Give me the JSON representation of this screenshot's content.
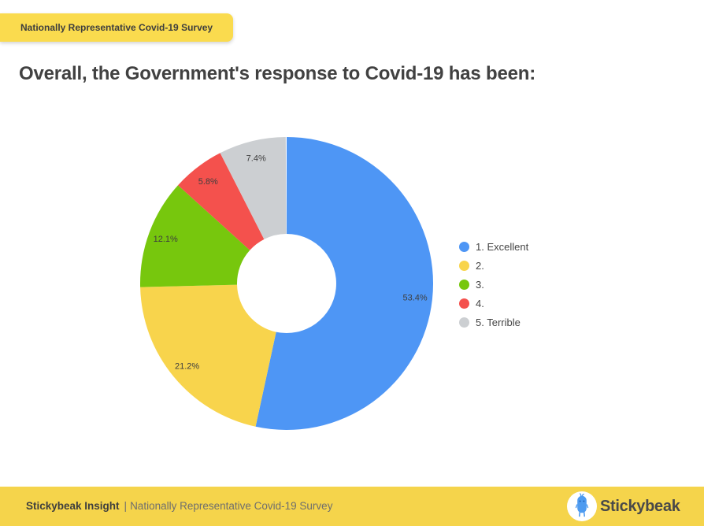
{
  "header": {
    "badge": "Nationally Representative Covid-19 Survey",
    "title": "Overall, the Government's response to Covid-19 has been:"
  },
  "chart_data": {
    "type": "pie",
    "donut": true,
    "start_angle_deg": 0,
    "clockwise": true,
    "title": "Overall, the Government's response to Covid-19 has been:",
    "categories": [
      "1. Excellent",
      "2.",
      "3.",
      "4.",
      "5. Terrible"
    ],
    "values": [
      53.4,
      21.2,
      12.1,
      5.8,
      7.4
    ],
    "labels": [
      "53.4%",
      "21.2%",
      "12.1%",
      "5.8%",
      "7.4%"
    ],
    "colors": [
      "#4E96F5",
      "#F8D44C",
      "#77C70D",
      "#F4514D",
      "#CCCFD2"
    ],
    "legend_position": "right"
  },
  "footer": {
    "brand": "Stickybeak Insight",
    "separator": "|",
    "survey": "Nationally Representative Covid-19 Survey",
    "logo_text": "Stickybeak"
  },
  "colors": {
    "badge_bg": "#FADB4E",
    "footer_bg": "#F5D44B",
    "title_text": "#414141",
    "label_text": "#3E3E3E",
    "legend_text": "#444444",
    "logo_bird_blue": "#4E9BF0"
  }
}
